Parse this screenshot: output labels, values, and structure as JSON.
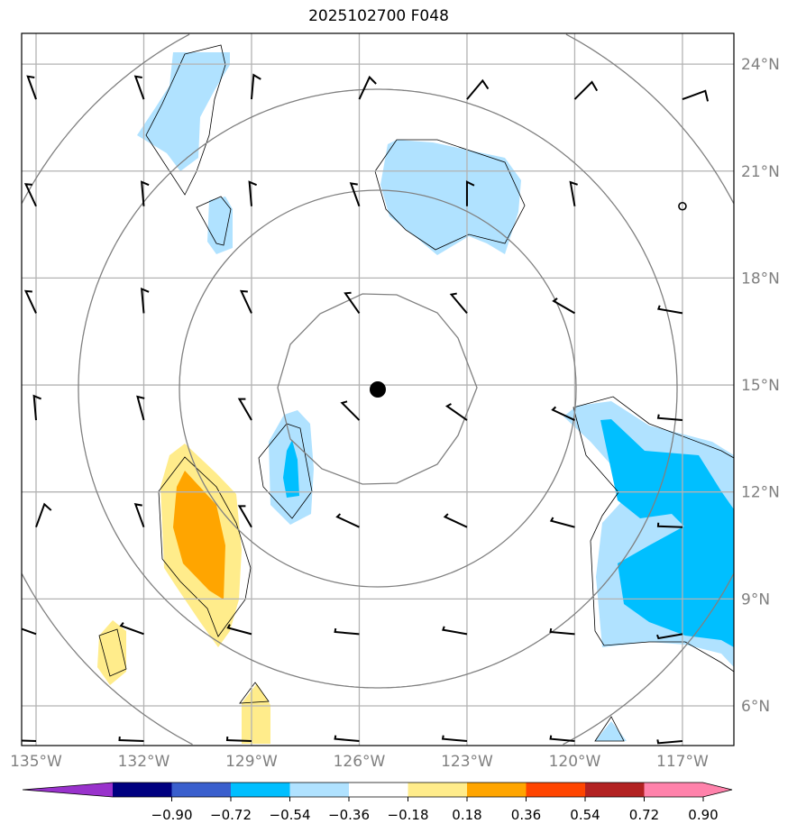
{
  "title": "2025102700 F048",
  "colors": {
    "grid": "#b3b3b3",
    "ring": "#808080",
    "levels": [
      "#9932cc",
      "#000080",
      "#3a5fcd",
      "#00bfff",
      "#b0e2ff",
      "#ffffff",
      "#ffec8b",
      "#ffa500",
      "#ff4500",
      "#b22222",
      "#ff82ab"
    ]
  },
  "lat_labels": [
    "24°N",
    "21°N",
    "18°N",
    "15°N",
    "12°N",
    "9°N",
    "6°N"
  ],
  "lon_labels": [
    "135°W",
    "132°W",
    "129°W",
    "126°W",
    "123°W",
    "120°W",
    "117°W"
  ],
  "colorbar": {
    "ticks": [
      "−0.90",
      "−0.72",
      "−0.54",
      "−0.36",
      "−0.18",
      "0.18",
      "0.36",
      "0.54",
      "0.72",
      "0.90"
    ]
  },
  "center_marker": {
    "lon": -126,
    "lat": 15
  },
  "wind_barbs": {
    "lons": [
      -135,
      -132,
      -129,
      -126,
      -123,
      -120,
      -117
    ],
    "lats": [
      24,
      21,
      18,
      15,
      12,
      9,
      6
    ],
    "staff_direction_deg": [
      [
        -20,
        -20,
        5,
        25,
        40,
        45,
        70
      ],
      [
        -25,
        -5,
        -5,
        -20,
        0,
        -10,
        null
      ],
      [
        -25,
        -5,
        -25,
        -35,
        -40,
        -60,
        -80
      ],
      [
        -5,
        -15,
        -30,
        -45,
        -55,
        -65,
        -85
      ],
      [
        20,
        -20,
        -30,
        -65,
        -65,
        -75,
        -88
      ],
      [
        -70,
        -70,
        -75,
        -85,
        -80,
        -85,
        -100
      ],
      [
        -88,
        -88,
        -88,
        -85,
        -85,
        -85,
        -95
      ]
    ]
  }
}
